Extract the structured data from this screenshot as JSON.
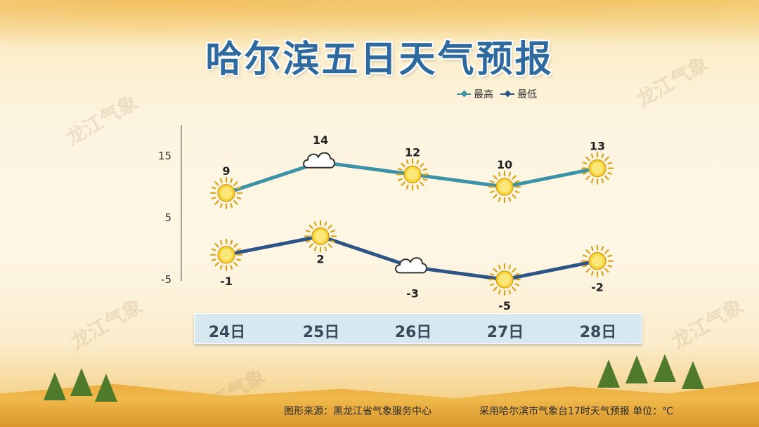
{
  "page": {
    "title": "哈尔滨五日天气预报",
    "watermark": "龙江气象",
    "footer_source": "图形来源：黑龙江省气象服务中心",
    "footer_note": "采用哈尔滨市气象台17时天气预报 单位：℃"
  },
  "chart_data": {
    "type": "line",
    "categories": [
      "24日",
      "25日",
      "26日",
      "27日",
      "28日"
    ],
    "series": [
      {
        "name": "最高",
        "color": "#3d93a6",
        "values": [
          9,
          14,
          12,
          10,
          13
        ],
        "weather_icons": [
          "sun-icon",
          "cloud-icon",
          "sun-icon",
          "sun-icon",
          "sun-icon"
        ]
      },
      {
        "name": "最低",
        "color": "#2d5486",
        "values": [
          -1,
          2,
          -3,
          -5,
          -2
        ],
        "weather_icons": [
          "sun-icon",
          "sun-icon",
          "cloud-icon",
          "sun-icon",
          "sun-icon"
        ]
      }
    ],
    "y_ticks": [
      "15",
      "5",
      "-5"
    ],
    "ylim": [
      -5,
      17
    ],
    "legend_position": "top-right",
    "grid": false
  }
}
